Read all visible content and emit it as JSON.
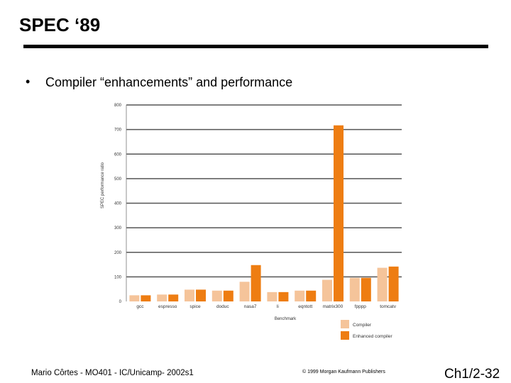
{
  "slide": {
    "title": "SPEC ‘89",
    "bullet": "•",
    "bullet_text": "Compiler “enhancements” and performance",
    "footer_left": "Mario Côrtes - MO401 - IC/Unicamp- 2002s1",
    "footer_mid": "© 1999 Morgan Kaufmann Publishers",
    "footer_right": "Ch1/2-32"
  },
  "chart_data": {
    "type": "bar",
    "title": "",
    "xlabel": "Benchmark",
    "ylabel": "SPEC performance ratio",
    "ylim": [
      0,
      800
    ],
    "yticks": [
      0,
      100,
      200,
      300,
      400,
      500,
      600,
      700,
      800
    ],
    "grid": true,
    "legend_position": "bottom-right",
    "categories": [
      "gcc",
      "espresso",
      "spice",
      "doduc",
      "nasa7",
      "li",
      "eqntott",
      "matrix300",
      "fpppp",
      "tomcatv"
    ],
    "series": [
      {
        "name": "Compiler",
        "color": "#f5c49a",
        "values": [
          25,
          28,
          48,
          44,
          80,
          38,
          44,
          88,
          96,
          137
        ]
      },
      {
        "name": "Enhanced compiler",
        "color": "#ee7d12",
        "values": [
          25,
          28,
          48,
          44,
          148,
          38,
          44,
          717,
          96,
          142
        ]
      }
    ]
  }
}
